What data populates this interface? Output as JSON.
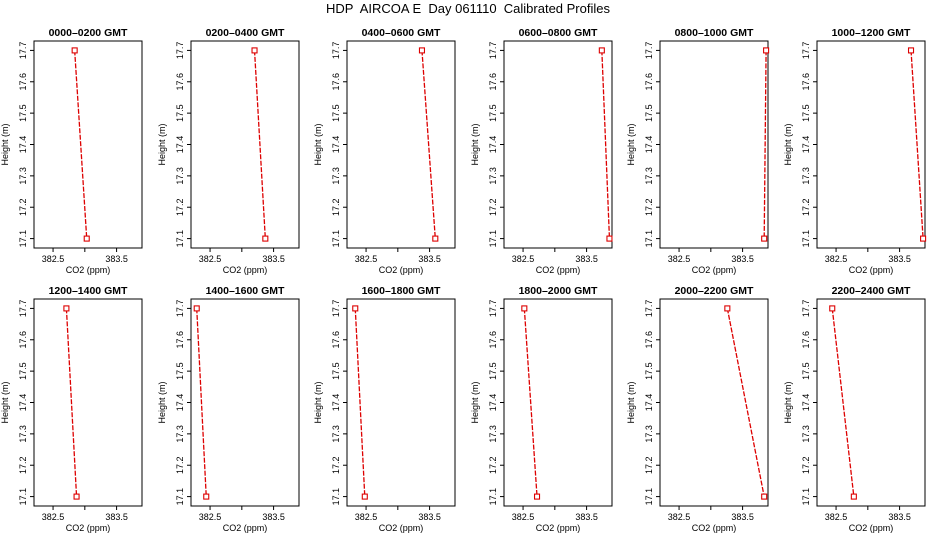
{
  "title": "HDP  AIRCOA E  Day 061110  Calibrated Profiles",
  "colors": {
    "series": "#dd0000",
    "axes": "#000000",
    "background": "#ffffff"
  },
  "chart_data": [
    {
      "type": "line",
      "title": "0000–0200 GMT",
      "xlabel": "CO2 (ppm)",
      "ylabel": "Height (m)",
      "xlim": [
        382.2,
        383.9
      ],
      "ylim": [
        17.07,
        17.73
      ],
      "xticks": [
        "382.5",
        "383.5"
      ],
      "yticks": [
        "17.1",
        "17.2",
        "17.3",
        "17.4",
        "17.5",
        "17.6",
        "17.7"
      ],
      "points": [
        {
          "x": 382.84,
          "y": 17.7
        },
        {
          "x": 383.03,
          "y": 17.1
        }
      ]
    },
    {
      "type": "line",
      "title": "0200–0400 GMT",
      "xlabel": "CO2 (ppm)",
      "ylabel": "Height (m)",
      "xlim": [
        382.2,
        383.9
      ],
      "ylim": [
        17.07,
        17.73
      ],
      "xticks": [
        "382.5",
        "383.5"
      ],
      "yticks": [
        "17.1",
        "17.2",
        "17.3",
        "17.4",
        "17.5",
        "17.6",
        "17.7"
      ],
      "points": [
        {
          "x": 383.2,
          "y": 17.7
        },
        {
          "x": 383.37,
          "y": 17.1
        }
      ]
    },
    {
      "type": "line",
      "title": "0400–0600 GMT",
      "xlabel": "CO2 (ppm)",
      "ylabel": "Height (m)",
      "xlim": [
        382.2,
        383.9
      ],
      "ylim": [
        17.07,
        17.73
      ],
      "xticks": [
        "382.5",
        "383.5"
      ],
      "yticks": [
        "17.1",
        "17.2",
        "17.3",
        "17.4",
        "17.5",
        "17.6",
        "17.7"
      ],
      "points": [
        {
          "x": 383.38,
          "y": 17.7
        },
        {
          "x": 383.59,
          "y": 17.1
        }
      ]
    },
    {
      "type": "line",
      "title": "0600–0800 GMT",
      "xlabel": "CO2 (ppm)",
      "ylabel": "Height (m)",
      "xlim": [
        382.2,
        383.9
      ],
      "ylim": [
        17.07,
        17.73
      ],
      "xticks": [
        "382.5",
        "383.5"
      ],
      "yticks": [
        "17.1",
        "17.2",
        "17.3",
        "17.4",
        "17.5",
        "17.6",
        "17.7"
      ],
      "points": [
        {
          "x": 383.74,
          "y": 17.7
        },
        {
          "x": 383.86,
          "y": 17.1
        }
      ]
    },
    {
      "type": "line",
      "title": "0800–1000 GMT",
      "xlabel": "CO2 (ppm)",
      "ylabel": "Height (m)",
      "xlim": [
        382.2,
        383.9
      ],
      "ylim": [
        17.07,
        17.73
      ],
      "xticks": [
        "382.5",
        "383.5"
      ],
      "yticks": [
        "17.1",
        "17.2",
        "17.3",
        "17.4",
        "17.5",
        "17.6",
        "17.7"
      ],
      "points": [
        {
          "x": 383.87,
          "y": 17.7
        },
        {
          "x": 383.84,
          "y": 17.1
        }
      ]
    },
    {
      "type": "line",
      "title": "1000–1200 GMT",
      "xlabel": "CO2 (ppm)",
      "ylabel": "Height (m)",
      "xlim": [
        382.2,
        383.9
      ],
      "ylim": [
        17.07,
        17.73
      ],
      "xticks": [
        "382.5",
        "383.5"
      ],
      "yticks": [
        "17.1",
        "17.2",
        "17.3",
        "17.4",
        "17.5",
        "17.6",
        "17.7"
      ],
      "points": [
        {
          "x": 383.68,
          "y": 17.7
        },
        {
          "x": 383.87,
          "y": 17.1
        }
      ]
    },
    {
      "type": "line",
      "title": "1200–1400 GMT",
      "xlabel": "CO2 (ppm)",
      "ylabel": "Height (m)",
      "xlim": [
        382.2,
        383.9
      ],
      "ylim": [
        17.07,
        17.73
      ],
      "xticks": [
        "382.5",
        "383.5"
      ],
      "yticks": [
        "17.1",
        "17.2",
        "17.3",
        "17.4",
        "17.5",
        "17.6",
        "17.7"
      ],
      "points": [
        {
          "x": 382.71,
          "y": 17.7
        },
        {
          "x": 382.87,
          "y": 17.1
        }
      ]
    },
    {
      "type": "line",
      "title": "1400–1600 GMT",
      "xlabel": "CO2 (ppm)",
      "ylabel": "Height (m)",
      "xlim": [
        382.2,
        383.9
      ],
      "ylim": [
        17.07,
        17.73
      ],
      "xticks": [
        "382.5",
        "383.5"
      ],
      "yticks": [
        "17.1",
        "17.2",
        "17.3",
        "17.4",
        "17.5",
        "17.6",
        "17.7"
      ],
      "points": [
        {
          "x": 382.29,
          "y": 17.7
        },
        {
          "x": 382.44,
          "y": 17.1
        }
      ]
    },
    {
      "type": "line",
      "title": "1600–1800 GMT",
      "xlabel": "CO2 (ppm)",
      "ylabel": "Height (m)",
      "xlim": [
        382.2,
        383.9
      ],
      "ylim": [
        17.07,
        17.73
      ],
      "xticks": [
        "382.5",
        "383.5"
      ],
      "yticks": [
        "17.1",
        "17.2",
        "17.3",
        "17.4",
        "17.5",
        "17.6",
        "17.7"
      ],
      "points": [
        {
          "x": 382.33,
          "y": 17.7
        },
        {
          "x": 382.48,
          "y": 17.1
        }
      ]
    },
    {
      "type": "line",
      "title": "1800–2000 GMT",
      "xlabel": "CO2 (ppm)",
      "ylabel": "Height (m)",
      "xlim": [
        382.2,
        383.9
      ],
      "ylim": [
        17.07,
        17.73
      ],
      "xticks": [
        "382.5",
        "383.5"
      ],
      "yticks": [
        "17.1",
        "17.2",
        "17.3",
        "17.4",
        "17.5",
        "17.6",
        "17.7"
      ],
      "points": [
        {
          "x": 382.52,
          "y": 17.7
        },
        {
          "x": 382.72,
          "y": 17.1
        }
      ]
    },
    {
      "type": "line",
      "title": "2000–2200 GMT",
      "xlabel": "CO2 (ppm)",
      "ylabel": "Height (m)",
      "xlim": [
        382.2,
        383.9
      ],
      "ylim": [
        17.07,
        17.73
      ],
      "xticks": [
        "382.5",
        "383.5"
      ],
      "yticks": [
        "17.1",
        "17.2",
        "17.3",
        "17.4",
        "17.5",
        "17.6",
        "17.7"
      ],
      "points": [
        {
          "x": 383.26,
          "y": 17.7
        },
        {
          "x": 383.84,
          "y": 17.1
        }
      ]
    },
    {
      "type": "line",
      "title": "2200–2400 GMT",
      "xlabel": "CO2 (ppm)",
      "ylabel": "Height (m)",
      "xlim": [
        382.2,
        383.9
      ],
      "ylim": [
        17.07,
        17.73
      ],
      "xticks": [
        "382.5",
        "383.5"
      ],
      "yticks": [
        "17.1",
        "17.2",
        "17.3",
        "17.4",
        "17.5",
        "17.6",
        "17.7"
      ],
      "points": [
        {
          "x": 382.44,
          "y": 17.7
        },
        {
          "x": 382.78,
          "y": 17.1
        }
      ]
    }
  ]
}
